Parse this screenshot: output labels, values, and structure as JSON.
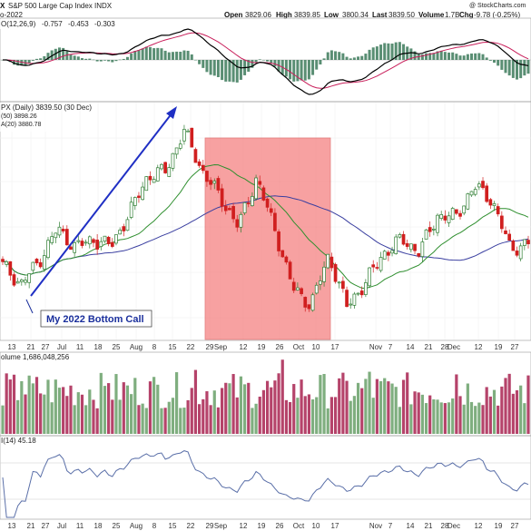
{
  "header": {
    "title": "S&P 500 Large Cap Index INDX",
    "date_fragment": "o-2022",
    "quote_open_label": "Open",
    "quote_open": "3829.06",
    "quote_high_label": "High",
    "quote_high": "3839.85",
    "quote_low_label": "Low",
    "quote_low": "3800.34",
    "quote_last_label": "Last",
    "quote_last": "3839.50",
    "quote_volume_label": "Volume",
    "quote_volume": "1.7B",
    "quote_chg_label": "Chg",
    "quote_chg": "-9.78 (-0.25%)",
    "watermark": "@ StockCharts.com"
  },
  "macd": {
    "label": "O(12,26,9)",
    "v1": "-0.757",
    "v2": "-0.453",
    "v3": "-0.303",
    "macd_color": "#000000",
    "signal_color": "#c81e5a",
    "hist_color": "#3c7a5a"
  },
  "price": {
    "label": "PX (Daily) 3839.50 (30 Dec)",
    "ma50_label": "(50) 3898.26",
    "ma20_label": "A(20) 3880.78",
    "up_color": "#2e7d32",
    "down_color": "#d01f1f",
    "ma50_color": "#3a3fa0",
    "ma20_color": "#2f8f2f",
    "annotation": "My 2022 Bottom Call",
    "shade_color": "#f47a7a"
  },
  "volume": {
    "label": "olume 1,686,048,256",
    "up_color": "#7fae7f",
    "down_color": "#b5436a"
  },
  "rsi": {
    "label": "I(14) 45.18",
    "line_color": "#5a6fa8"
  },
  "axis": {
    "labels": [
      "13",
      "21",
      "27",
      "Jul",
      "11",
      "18",
      "25",
      "Aug",
      "8",
      "15",
      "22",
      "29",
      "Sep",
      "12",
      "19",
      "26",
      "Oct",
      "10",
      "17",
      "Nov",
      "7",
      "14",
      "21",
      "28",
      "Dec",
      "12",
      "19",
      "27"
    ]
  },
  "chart_data": {
    "type": "candlestick",
    "title": "S&P 500 Large Cap Index",
    "x_axis_labels": [
      "13",
      "21",
      "27",
      "Jul",
      "11",
      "18",
      "25",
      "Aug",
      "8",
      "15",
      "22",
      "29",
      "Sep",
      "12",
      "19",
      "26",
      "Oct",
      "10",
      "17",
      "Nov",
      "7",
      "14",
      "21",
      "28",
      "Dec",
      "12",
      "19",
      "27"
    ],
    "price_close_trend": [
      [
        "Jun 13",
        3750
      ],
      [
        "Jun 16",
        3670
      ],
      [
        "Jun 21",
        3765
      ],
      [
        "Jun 27",
        3900
      ],
      [
        "Jul 1",
        3825
      ],
      [
        "Jul 11",
        3855
      ],
      [
        "Jul 18",
        3830
      ],
      [
        "Jul 25",
        3965
      ],
      [
        "Aug 1",
        4118
      ],
      [
        "Aug 8",
        4140
      ],
      [
        "Aug 16",
        4305
      ],
      [
        "Aug 22",
        4140
      ],
      [
        "Aug 29",
        4030
      ],
      [
        "Sep 6",
        3910
      ],
      [
        "Sep 12",
        4110
      ],
      [
        "Sep 19",
        3900
      ],
      [
        "Sep 26",
        3655
      ],
      [
        "Sep 30",
        3585
      ],
      [
        "Oct 4",
        3790
      ],
      [
        "Oct 12",
        3577
      ],
      [
        "Oct 17",
        3677
      ],
      [
        "Oct 24",
        3797
      ],
      [
        "Nov 1",
        3856
      ],
      [
        "Nov 7",
        3806
      ],
      [
        "Nov 10",
        3956
      ],
      [
        "Nov 21",
        3949
      ],
      [
        "Dec 1",
        4076
      ],
      [
        "Dec 13",
        4019
      ],
      [
        "Dec 19",
        3817
      ],
      [
        "Dec 30",
        3839.5
      ]
    ],
    "indicators": {
      "ma50_last": 3898.26,
      "ma20_last": 3880.78,
      "volume_last": 1686048256,
      "rsi14_last": 45.18,
      "macd_values": [
        -0.757,
        -0.453,
        -0.303
      ]
    },
    "last": {
      "open": 3829.06,
      "high": 3839.85,
      "low": 3800.34,
      "close": 3839.5,
      "volume": "1.7B",
      "change": -9.78,
      "change_pct": -0.25
    }
  }
}
